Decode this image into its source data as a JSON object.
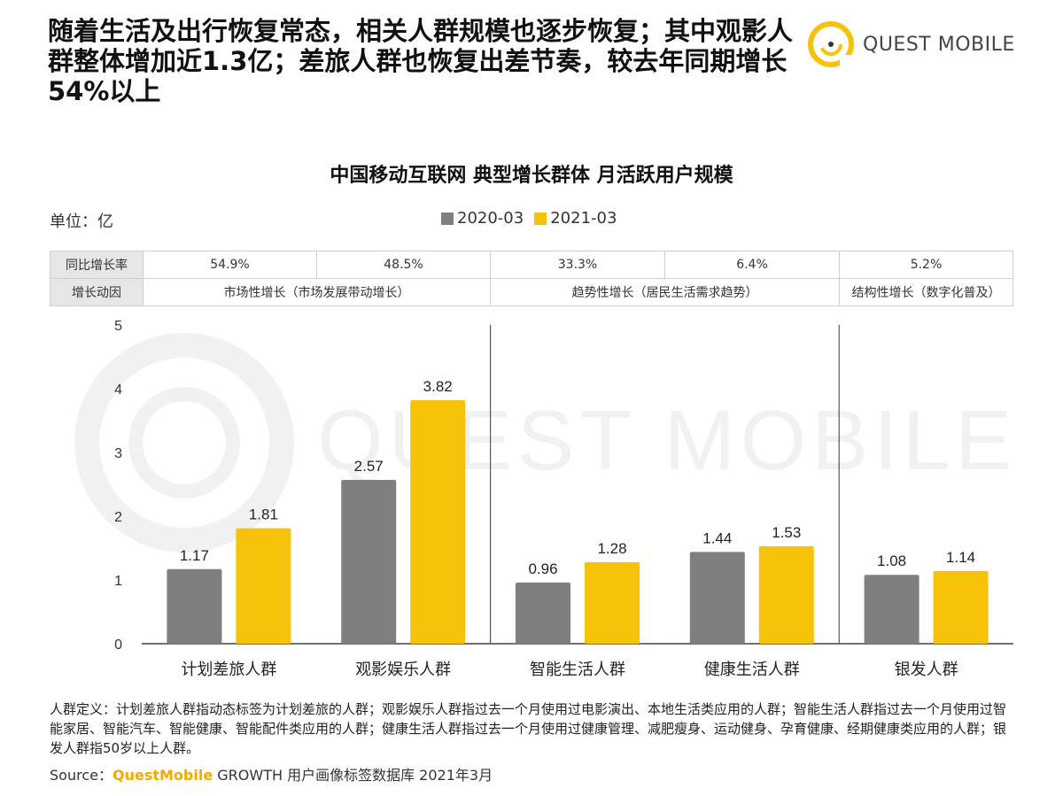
{
  "headline": "随着生活及出行恢复常态，相关人群规模也逐步恢复；其中观影人群整体增加近1.3亿；差旅人群也恢复出差节奏，较去年同期增长54%以上",
  "logo": {
    "text": "QUEST MOBILE",
    "icon": "quest-mobile-logo-icon"
  },
  "watermark_text": "QUEST MOBILE",
  "unit_label": "单位：亿",
  "table": {
    "row1_header": "同比增长率",
    "row2_header": "增长动因",
    "growth_rates": [
      "54.9%",
      "48.5%",
      "33.3%",
      "6.4%",
      "5.2%"
    ],
    "drivers": [
      "市场性增长（市场发展带动增长）",
      "趋势性增长（居民生活需求趋势）",
      "结构性增长（数字化普及）"
    ]
  },
  "colors": {
    "series_2020": "#7f7f7f",
    "series_2021": "#f7c20a",
    "brand": "#f2a900"
  },
  "chart_data": {
    "type": "bar",
    "title": "中国移动互联网 典型增长群体 月活跃用户规模",
    "categories": [
      "计划差旅人群",
      "观影娱乐人群",
      "智能生活人群",
      "健康生活人群",
      "银发人群"
    ],
    "series": [
      {
        "name": "2020-03",
        "values": [
          1.17,
          2.57,
          0.96,
          1.44,
          1.08
        ]
      },
      {
        "name": "2021-03",
        "values": [
          1.81,
          3.82,
          1.28,
          1.53,
          1.14
        ]
      }
    ],
    "y_ticks": [
      "0",
      "1",
      "2",
      "3",
      "4",
      "5"
    ],
    "ylim": [
      0,
      5
    ],
    "grid": false,
    "legend": "top-center"
  },
  "definition": "人群定义：计划差旅人群指动态标签为计划差旅的人群；观影娱乐人群指过去一个月使用过电影演出、本地生活类应用的人群；智能生活人群指过去一个月使用过智能家居、智能汽车、智能健康、智能配件类应用的人群；健康生活人群指过去一个月使用过健康管理、减肥瘦身、运动健身、孕育健康、经期健康类应用的人群；银发人群指50岁以上人群。",
  "source": {
    "prefix": "Source：",
    "brand": "QuestMobile",
    "suffix": " GROWTH 用户画像标签数据库 2021年3月"
  }
}
